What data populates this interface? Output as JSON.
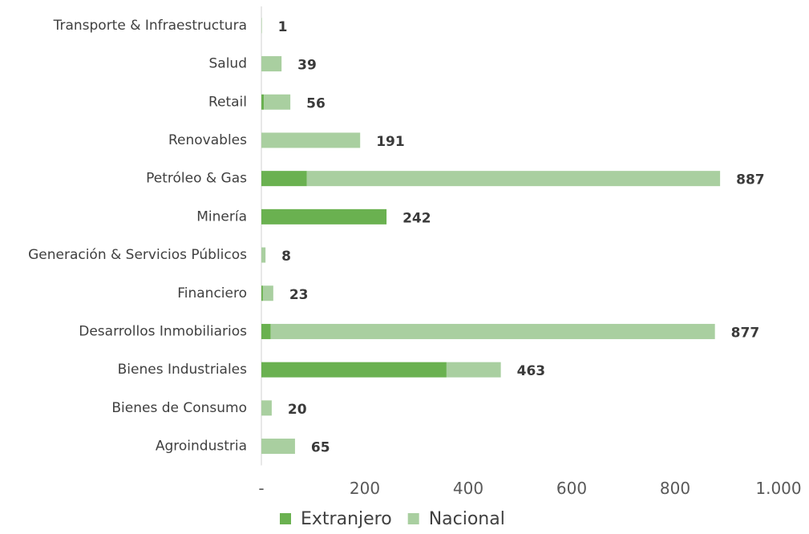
{
  "chart_data": {
    "type": "stacked_barh",
    "categories": [
      "Transporte & Infraestructura",
      "Salud",
      "Retail",
      "Renovables",
      "Petróleo & Gas",
      "Minería",
      "Generación & Servicios Públicos",
      "Financiero",
      "Desarrollos Inmobiliarios",
      "Bienes Industriales",
      "Bienes de Consumo",
      "Agroindustria"
    ],
    "series": [
      {
        "name": "Extranjero",
        "color": "#6ab150",
        "values": [
          0,
          0,
          5,
          0,
          88,
          242,
          0,
          3,
          18,
          358,
          0,
          0
        ]
      },
      {
        "name": "Nacional",
        "color": "#a9cfa0",
        "values": [
          1,
          39,
          51,
          191,
          799,
          0,
          8,
          20,
          859,
          105,
          20,
          65
        ]
      }
    ],
    "totals": [
      1,
      39,
      56,
      191,
      887,
      242,
      8,
      23,
      877,
      463,
      20,
      65
    ],
    "xlim": [
      0,
      1000
    ],
    "xticks": [
      {
        "value": 0,
        "label": "-"
      },
      200,
      400,
      600,
      800,
      {
        "value": 1000,
        "label": "1.000"
      }
    ],
    "legend": "bottom"
  }
}
